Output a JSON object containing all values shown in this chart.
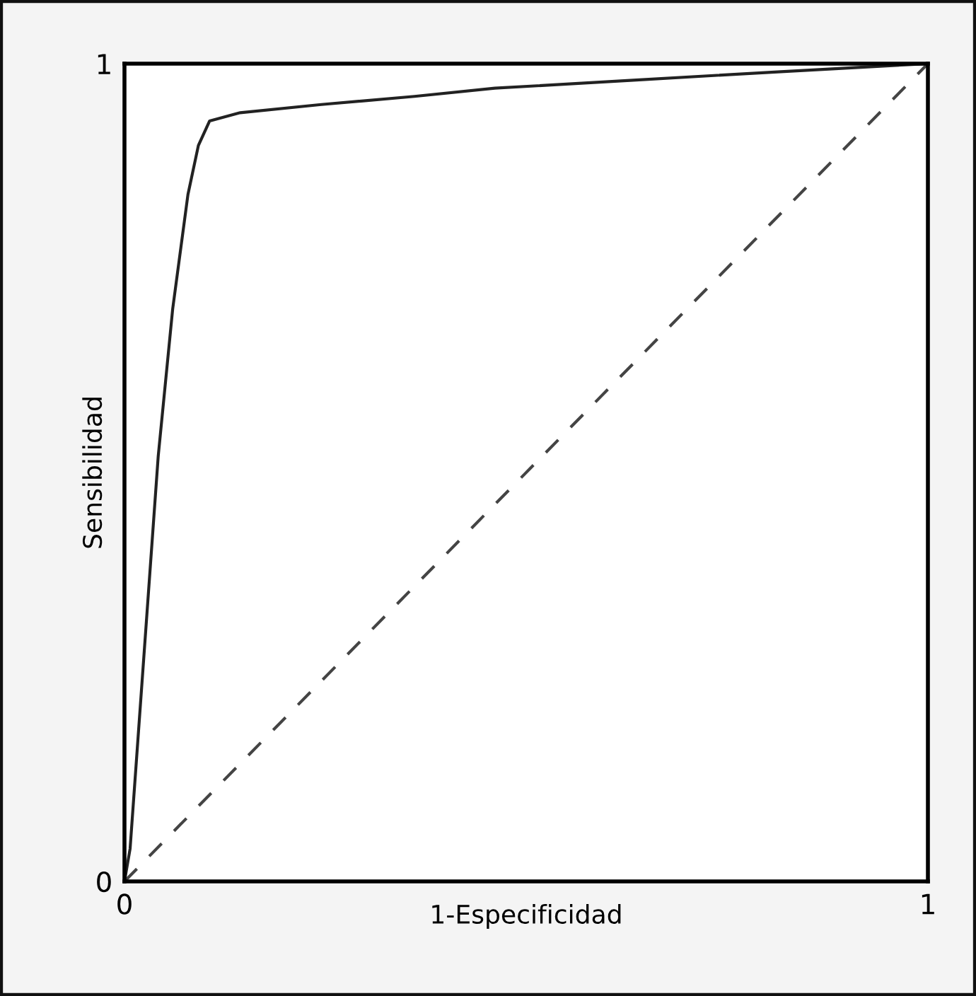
{
  "chart_data": {
    "type": "line",
    "xlabel": "1-Especificidad",
    "ylabel": "Sensibilidad",
    "xlim": [
      0,
      1
    ],
    "ylim": [
      0,
      1
    ],
    "xticks": [
      0,
      1
    ],
    "yticks": [
      0,
      1
    ],
    "marker": "none",
    "series": [
      {
        "color": "#222222",
        "line_style": "solid",
        "x": [
          0,
          0.007,
          0.042,
          0.06,
          0.079,
          0.092,
          0.106,
          0.144,
          0.245,
          0.361,
          0.461,
          0.637,
          0.813,
          1
        ],
        "values": [
          0,
          0.04,
          0.52,
          0.7,
          0.84,
          0.9,
          0.93,
          0.94,
          0.95,
          0.96,
          0.97,
          0.98,
          0.99,
          1
        ]
      },
      {
        "color": "#444444",
        "line_style": "dashed",
        "x": [
          0,
          1
        ],
        "values": [
          0,
          1
        ]
      }
    ]
  }
}
